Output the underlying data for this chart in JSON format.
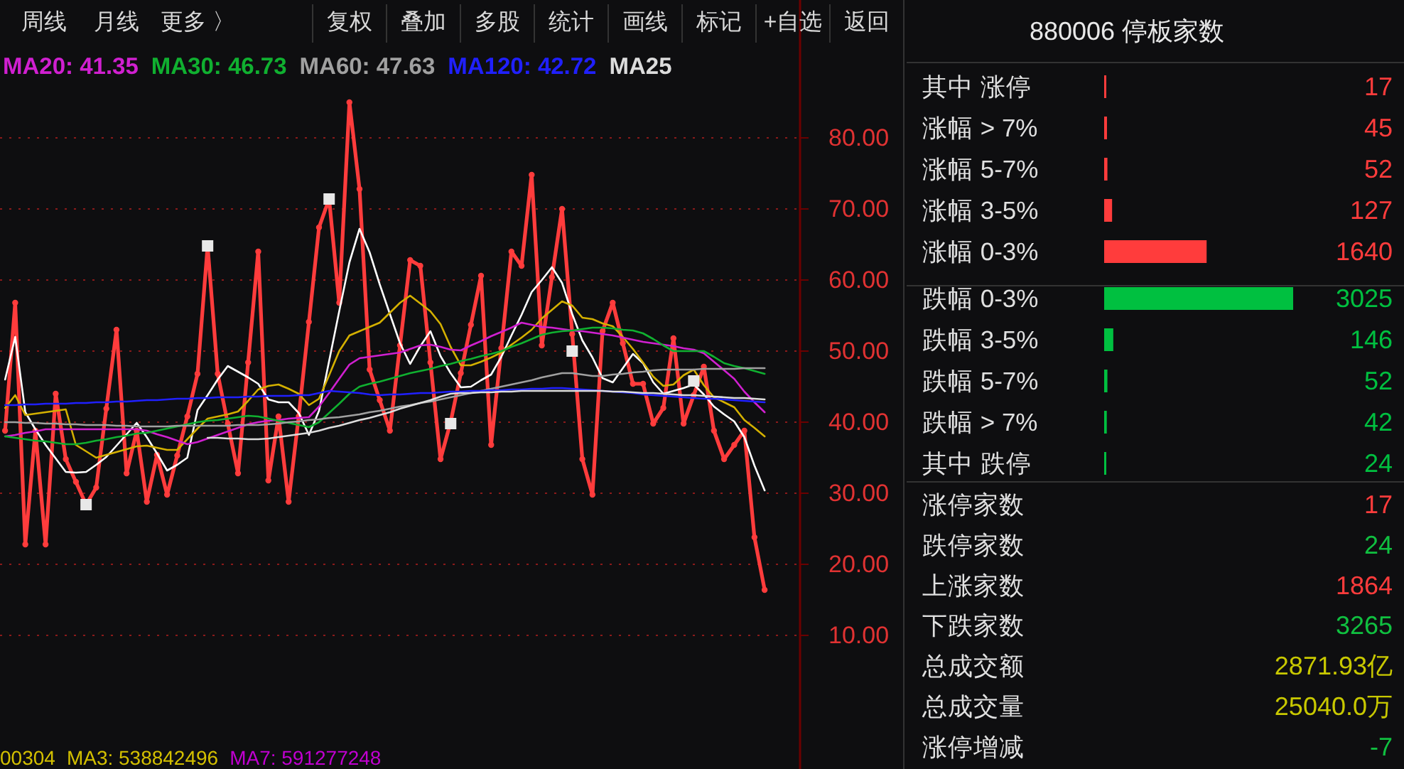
{
  "chart_data": [
    {
      "type": "line",
      "legend": "top left",
      "grid": "y",
      "tick_labels": "y",
      "ylim": [
        -8.8,
        99.4
      ],
      "categories": [
        null,
        null,
        null,
        null,
        null,
        null,
        null,
        null,
        null,
        null,
        null,
        null,
        null,
        null,
        null,
        null,
        null,
        null,
        null,
        null,
        null,
        null,
        null,
        null,
        null,
        null,
        null,
        null,
        null,
        null,
        null,
        null,
        null,
        null,
        null,
        null,
        null,
        null,
        null,
        null,
        null,
        null,
        null,
        null,
        null,
        null,
        null,
        null,
        null,
        null,
        null,
        null,
        null,
        null,
        null,
        null,
        null,
        null,
        null,
        null,
        null,
        null,
        null,
        null,
        null,
        null,
        null,
        null,
        null,
        null,
        null,
        null,
        null,
        null,
        null,
        null,
        null,
        null,
        null
      ],
      "yticks": [
        {
          "value": 10,
          "label": "10.00"
        },
        {
          "value": 20,
          "label": "20.00"
        },
        {
          "value": 30,
          "label": "30.00"
        },
        {
          "value": 40,
          "label": "40.00"
        },
        {
          "value": 50,
          "label": "50.00"
        },
        {
          "value": 60,
          "label": "60.00"
        },
        {
          "value": 70,
          "label": "70.00"
        },
        {
          "value": 80,
          "label": "80.00"
        }
      ],
      "annotations": [
        "周线",
        "月线",
        "更多 〉",
        "复权",
        "叠加",
        "多股",
        "统计",
        "画线",
        "标记",
        "+自选",
        "返回",
        "00304",
        "MA3: 538842496",
        "MA7: 591277248"
      ],
      "series": [
        {
          "color": "#ff3c3c",
          "marker": "circle",
          "values": [
            38.8,
            56.8,
            22.8,
            38.8,
            22.8,
            44,
            34.8,
            31.6,
            28.4,
            30.8,
            41.9,
            53,
            32.8,
            38.8,
            28.8,
            35.4,
            29.8,
            35.3,
            40.8,
            46.8,
            64.8,
            46.8,
            39.8,
            32.8,
            48.4,
            64,
            31.8,
            40.8,
            28.8,
            40.8,
            54.1,
            67.4,
            71.4,
            56.8,
            85,
            72.8,
            47.4,
            43.1,
            38.8,
            50.8,
            62.8,
            62,
            48.4,
            34.8,
            40,
            46.9,
            53.7,
            60.6,
            36.8,
            50.4,
            64,
            62,
            74.8,
            50.8,
            60.4,
            70,
            52.4,
            34.8,
            29.8,
            52.8,
            56.8,
            51.1,
            45.4,
            45.4,
            39.8,
            42,
            51.8,
            39.8,
            43.8,
            47.8,
            38.8,
            34.8,
            36.8,
            38.8,
            23.8,
            16.4,
            null,
            null,
            null
          ]
        },
        {
          "color": "#ffffff",
          "values": [
            46,
            52,
            41.4,
            39.0,
            36.8,
            34.9,
            33.0,
            32.9,
            33.0,
            34.0,
            35.1,
            36.7,
            38.3,
            39.9,
            37.9,
            35.6,
            33.2,
            34.0,
            35.0,
            41.7,
            43.8,
            46.0,
            47.9,
            47.1,
            46.3,
            45.4,
            43.2,
            42.8,
            42.8,
            41.3,
            38.2,
            41.6,
            48.6,
            55.6,
            62.5,
            67.2,
            63.9,
            59.4,
            55.2,
            51.1,
            48.2,
            50.7,
            52.8,
            49.3,
            46.9,
            44.9,
            45.0,
            45.9,
            46.7,
            49.2,
            52.2,
            55.1,
            58.3,
            60.0,
            61.8,
            59.6,
            55.2,
            51.5,
            49.1,
            46.2,
            45.6,
            47.6,
            49.6,
            48.3,
            45.6,
            44.0,
            44.4,
            44.8,
            45.3,
            43.9,
            42.2,
            41.1,
            40.1,
            37.9,
            33.9,
            30.4,
            null,
            null,
            null
          ]
        },
        {
          "color": "#d4b000",
          "values": [
            42,
            43.8,
            41,
            41.2,
            41.4,
            41.6,
            41.8,
            36.8,
            35.9,
            35,
            35.4,
            35.8,
            36.2,
            36.6,
            36.7,
            36.4,
            36.1,
            36.1,
            37.6,
            39.1,
            40.5,
            40.8,
            41.1,
            41.5,
            43.0,
            44.6,
            45.1,
            45.3,
            44.7,
            44.0,
            42.4,
            43.3,
            46.6,
            50.0,
            52.2,
            52.8,
            53.4,
            54.0,
            55.4,
            56.8,
            57.8,
            56.7,
            55.6,
            53.8,
            50.6,
            48.0,
            48.0,
            48.5,
            49.1,
            49.8,
            50.9,
            51.9,
            53.0,
            54.6,
            55.8,
            57.0,
            56.4,
            54.7,
            54.5,
            53.9,
            53.5,
            52.0,
            50.3,
            48.4,
            46.4,
            45.1,
            45.3,
            46.6,
            47.4,
            45.2,
            43.5,
            42.8,
            42.1,
            40.3,
            39.2,
            38.0,
            null,
            null,
            null
          ]
        },
        {
          "name": "MA20: 41.35",
          "color": "#d020d0",
          "values": [
            38.0,
            38.2,
            38.5,
            38.7,
            39.0,
            39.0,
            39.0,
            39.0,
            39.0,
            39.0,
            39.0,
            39.0,
            39.0,
            39.0,
            38.8,
            38.3,
            37.9,
            37.4,
            36.9,
            37.2,
            37.7,
            38.2,
            38.7,
            39.2,
            39.7,
            40.0,
            40.2,
            40.3,
            40.5,
            40.6,
            40.7,
            42.2,
            44.1,
            46.1,
            48.1,
            49.0,
            49.2,
            49.4,
            49.6,
            49.8,
            50.3,
            50.8,
            50.9,
            50.6,
            50.2,
            50.1,
            50.8,
            51.4,
            52.1,
            52.7,
            53.3,
            54.0,
            53.7,
            53.4,
            53.3,
            53.1,
            52.9,
            52.8,
            52.6,
            52.4,
            52.2,
            51.9,
            51.6,
            51.3,
            51.1,
            50.9,
            50.7,
            50.4,
            50.2,
            49.7,
            48.5,
            47.3,
            46.1,
            44.3,
            42.8,
            41.4,
            null,
            null,
            null
          ]
        },
        {
          "name": "MA30: 46.73",
          "color": "#10b030",
          "values": [
            38.0,
            37.8,
            37.6,
            37.4,
            37.3,
            37.1,
            36.9,
            36.9,
            37.1,
            37.4,
            37.6,
            37.9,
            38.1,
            38.4,
            38.5,
            38.8,
            39.1,
            39.4,
            39.7,
            40.0,
            40.2,
            40.3,
            40.5,
            40.7,
            40.9,
            40.8,
            40.5,
            40.2,
            39.9,
            39.6,
            39.3,
            40.0,
            41.3,
            42.6,
            44.0,
            45.0,
            45.4,
            45.7,
            46.1,
            46.5,
            46.9,
            47.2,
            47.5,
            47.9,
            48.2,
            48.6,
            48.9,
            49.3,
            49.6,
            50.0,
            50.6,
            51.1,
            51.7,
            52.3,
            52.6,
            52.8,
            52.9,
            53.1,
            53.3,
            53.3,
            53.2,
            53.0,
            52.9,
            52.5,
            51.7,
            50.8,
            50.0,
            50.0,
            50.0,
            50.0,
            49.2,
            48.3,
            47.9,
            47.6,
            47.2,
            46.8,
            null,
            null,
            null
          ]
        },
        {
          "name": "MA60: 47.63",
          "color": "#a0a0a0",
          "values": [
            40.0,
            40.0,
            39.9,
            39.9,
            39.8,
            39.8,
            39.7,
            39.7,
            39.6,
            39.6,
            39.6,
            39.5,
            39.5,
            39.4,
            39.4,
            39.4,
            39.4,
            39.5,
            39.5,
            39.5,
            39.5,
            39.5,
            39.5,
            39.6,
            39.6,
            39.6,
            39.7,
            39.8,
            40.0,
            40.1,
            40.3,
            40.4,
            40.6,
            40.7,
            40.9,
            41.1,
            41.4,
            41.6,
            41.9,
            42.2,
            42.4,
            42.7,
            42.9,
            43.2,
            43.5,
            43.8,
            44.1,
            44.4,
            44.7,
            45.0,
            45.3,
            45.6,
            45.9,
            46.3,
            46.6,
            46.9,
            46.9,
            46.7,
            46.5,
            46.5,
            46.7,
            46.8,
            47.0,
            47.1,
            47.3,
            47.4,
            47.4,
            47.4,
            47.4,
            47.5,
            47.5,
            47.5,
            47.5,
            47.6,
            47.6,
            47.6,
            null,
            null,
            null
          ]
        },
        {
          "name": "MA120: 42.72",
          "color": "#2020ff",
          "values": [
            42.4,
            42.4,
            42.5,
            42.5,
            42.6,
            42.6,
            42.6,
            42.7,
            42.7,
            42.8,
            42.8,
            42.9,
            42.9,
            43.0,
            43.1,
            43.1,
            43.2,
            43.3,
            43.3,
            43.4,
            43.4,
            43.5,
            43.5,
            43.5,
            43.6,
            43.6,
            43.7,
            43.7,
            43.7,
            43.8,
            43.8,
            44.1,
            44.4,
            44.3,
            44.2,
            44.1,
            43.9,
            43.8,
            43.9,
            43.9,
            44.0,
            44.1,
            44.1,
            44.2,
            44.3,
            44.3,
            44.4,
            44.4,
            44.5,
            44.5,
            44.6,
            44.6,
            44.7,
            44.7,
            44.8,
            44.8,
            44.7,
            44.6,
            44.5,
            44.4,
            44.3,
            44.2,
            44.1,
            43.9,
            43.8,
            43.7,
            43.6,
            43.5,
            43.4,
            43.3,
            43.3,
            43.2,
            43.1,
            43.0,
            42.9,
            42.8,
            null,
            null,
            null
          ]
        },
        {
          "name": "MA25",
          "color": "#dcdcdc",
          "values": [
            null,
            null,
            null,
            null,
            null,
            null,
            null,
            null,
            null,
            null,
            null,
            null,
            null,
            null,
            null,
            null,
            null,
            null,
            null,
            null,
            37.8,
            37.8,
            37.7,
            37.7,
            37.6,
            37.6,
            37.7,
            37.9,
            38.1,
            38.3,
            38.5,
            38.8,
            39.2,
            39.5,
            39.9,
            40.3,
            40.6,
            41.0,
            41.4,
            41.9,
            42.3,
            42.7,
            43.1,
            43.6,
            44.0,
            44.1,
            44.1,
            44.2,
            44.2,
            44.3,
            44.3,
            44.4,
            44.4,
            44.4,
            44.4,
            44.4,
            44.4,
            44.4,
            44.4,
            44.4,
            44.3,
            44.3,
            44.2,
            44.1,
            44.1,
            44.0,
            43.9,
            43.8,
            43.8,
            43.7,
            43.6,
            43.5,
            43.4,
            43.4,
            43.3,
            43.2,
            null,
            null,
            null
          ]
        },
        {
          "type": "scatter",
          "marker": "square",
          "color": "#e8e8e8",
          "values": [
            null,
            null,
            null,
            null,
            null,
            null,
            null,
            null,
            28.4,
            null,
            null,
            null,
            null,
            null,
            null,
            null,
            null,
            null,
            null,
            null,
            64.8,
            null,
            null,
            null,
            null,
            null,
            null,
            null,
            null,
            null,
            null,
            null,
            71.4,
            null,
            null,
            null,
            null,
            null,
            null,
            null,
            null,
            null,
            null,
            null,
            39.8,
            null,
            null,
            null,
            null,
            null,
            null,
            null,
            null,
            null,
            null,
            null,
            50,
            null,
            null,
            null,
            null,
            null,
            null,
            null,
            null,
            null,
            null,
            null,
            45.8,
            null,
            null,
            null,
            null,
            null,
            null,
            null,
            null,
            null,
            null
          ]
        }
      ]
    },
    {
      "type": "bar",
      "orientation": "horizontal",
      "title": "880006 停板家数",
      "data_labels": true,
      "categories": [
        "其中 涨停",
        "涨幅 > 7%",
        "涨幅 5-7%",
        "涨幅 3-5%",
        "涨幅 0-3%",
        "跌幅 0-3%",
        "跌幅 3-5%",
        "跌幅 5-7%",
        "跌幅 > 7%",
        "其中 跌停"
      ],
      "values": [
        17,
        45,
        52,
        127,
        1640,
        3025,
        146,
        52,
        42,
        24
      ],
      "colors": [
        "#ff3c3c",
        "#ff3c3c",
        "#ff3c3c",
        "#ff3c3c",
        "#ff3c3c",
        "#00c040",
        "#00c040",
        "#00c040",
        "#00c040",
        "#00c040"
      ]
    },
    {
      "type": "other",
      "categories": [
        "涨停家数",
        "跌停家数",
        "上涨家数",
        "下跌家数",
        "总成交额",
        "总成交量",
        "涨停增减"
      ],
      "value_labels": [
        "17",
        "24",
        "1864",
        "3265",
        "2871.93亿",
        "25040.0万",
        "-7"
      ],
      "colors": [
        "#ff3c3c",
        "#10c040",
        "#ff3c3c",
        "#10c040",
        "#c8c800",
        "#c8c800",
        "#10c040"
      ]
    }
  ]
}
